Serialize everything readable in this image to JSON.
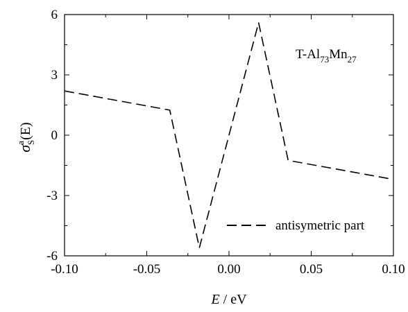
{
  "chart_data": {
    "type": "line",
    "title": "",
    "xlabel": {
      "var": "E",
      "unit": " / eV"
    },
    "ylabel": {
      "var": "σ",
      "sup": "a",
      "sub": "S",
      "arg": "(E)"
    },
    "xlim": [
      -0.1,
      0.1
    ],
    "ylim": [
      -6,
      6
    ],
    "xticks": [
      -0.1,
      -0.05,
      0.0,
      0.05,
      0.1
    ],
    "xtick_labels": [
      "-0.10",
      "-0.05",
      "0.00",
      "0.05",
      "0.10"
    ],
    "yticks": [
      -6,
      -3,
      0,
      3,
      6
    ],
    "ytick_labels": [
      "-6",
      "-3",
      "0",
      "3",
      "6"
    ],
    "grid": false,
    "legend_position": "bottom-right",
    "annotation": {
      "base": "T-Al",
      "n1": "73",
      "mid": "Mn",
      "n2": "27"
    },
    "series": [
      {
        "name": "antisymetric part",
        "style": "dashed",
        "color": "#000000",
        "x": [
          -0.1,
          -0.036,
          -0.018,
          0.018,
          0.036,
          0.1
        ],
        "y": [
          2.2,
          1.25,
          -5.6,
          5.6,
          -1.25,
          -2.2
        ]
      }
    ]
  }
}
